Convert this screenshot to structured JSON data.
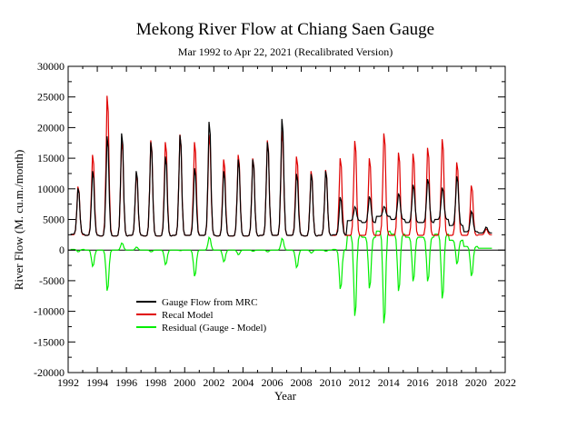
{
  "chart_data": {
    "type": "line",
    "title": "Mekong River Flow at Chiang Saen Gauge",
    "subtitle": "Mar 1992 to Apr 22, 2021 (Recalibrated Version)",
    "xlabel": "Year",
    "ylabel": "River Flow (M. cu.m./month)",
    "xlim": [
      1992,
      2022
    ],
    "ylim": [
      -20000,
      30000
    ],
    "xticks": [
      1992,
      1994,
      1996,
      1998,
      2000,
      2002,
      2004,
      2006,
      2008,
      2010,
      2012,
      2014,
      2016,
      2018,
      2020,
      2022
    ],
    "yticks": [
      -20000,
      -15000,
      -10000,
      -5000,
      0,
      5000,
      10000,
      15000,
      20000,
      25000,
      30000
    ],
    "zero_line": true,
    "grid": false,
    "legend_position": "lower-left",
    "peak_month": 0.7,
    "series": [
      {
        "name": "Gauge Flow from MRC",
        "color": "#000000",
        "annual_peaks": [
          10500,
          13500,
          19500,
          20000,
          13500,
          18500,
          16000,
          19700,
          14000,
          22000,
          13500,
          15500,
          15500,
          18500,
          22500,
          13000,
          13000,
          13500,
          9000,
          7200,
          9000,
          7200,
          9500,
          11000,
          12000,
          10500,
          12500,
          6500,
          3800
        ],
        "annual_base": [
          2600,
          2400,
          2300,
          2300,
          2400,
          2300,
          2300,
          2400,
          2400,
          2400,
          2300,
          2300,
          2300,
          2400,
          2400,
          2400,
          2300,
          2400,
          2500,
          4800,
          4500,
          5500,
          5000,
          4500,
          4500,
          5000,
          4000,
          3000,
          2800
        ]
      },
      {
        "name": "Recal Model",
        "color": "#e00000",
        "annual_peaks": [
          10800,
          16300,
          26500,
          18800,
          13000,
          18800,
          18500,
          19800,
          18500,
          19800,
          15500,
          16300,
          15700,
          18800,
          20500,
          16000,
          13500,
          13700,
          15700,
          18700,
          15700,
          20000,
          16700,
          16500,
          17500,
          19000,
          15000,
          11000,
          3500
        ],
        "annual_base": [
          2500,
          2400,
          2300,
          2300,
          2400,
          2300,
          2300,
          2400,
          2400,
          2400,
          2300,
          2300,
          2300,
          2400,
          2400,
          2400,
          2300,
          2400,
          2400,
          2400,
          2400,
          2400,
          2400,
          2400,
          2400,
          2400,
          2400,
          2400,
          2500
        ]
      },
      {
        "name": "Residual (Gauge - Model)",
        "color": "#00ee00",
        "derived": "gauge_minus_model"
      }
    ]
  }
}
